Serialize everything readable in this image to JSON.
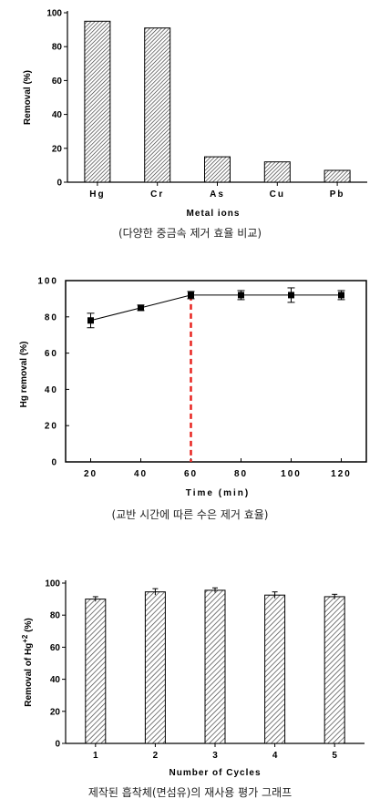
{
  "chart_data": [
    {
      "type": "bar",
      "categories": [
        "Hg",
        "Cr",
        "As",
        "Cu",
        "Pb"
      ],
      "values": [
        95,
        91,
        15,
        12,
        7
      ],
      "xlabel": "Metal ions",
      "ylabel": "Removal (%)",
      "ylim": [
        0,
        100
      ],
      "yticks": [
        0,
        20,
        40,
        60,
        80,
        100
      ],
      "pattern": "diagonal-hatch",
      "caption": "(다양한 중금속 제거 효율 비교)"
    },
    {
      "type": "line",
      "x": [
        20,
        40,
        60,
        80,
        100,
        120
      ],
      "y": [
        78,
        85,
        92,
        92,
        92,
        92
      ],
      "yerr": [
        4,
        1.5,
        2,
        2.5,
        4,
        2.5
      ],
      "xlabel": "Time (min)",
      "ylabel": "Hg removal (%)",
      "xlim": [
        10,
        130
      ],
      "ylim": [
        0,
        100
      ],
      "xticks": [
        20,
        40,
        60,
        80,
        100,
        120
      ],
      "yticks": [
        0,
        20,
        40,
        60,
        80,
        100
      ],
      "vline": {
        "x": 60,
        "color": "#e8231f",
        "style": "dashed"
      },
      "caption": "(교반 시간에 따른 수은 제거 효율)"
    },
    {
      "type": "bar",
      "categories": [
        "1",
        "2",
        "3",
        "4",
        "5"
      ],
      "values": [
        90,
        94.5,
        95.5,
        92.5,
        91.5
      ],
      "yerr": [
        1.5,
        2,
        1.5,
        2,
        1.5
      ],
      "xlabel": "Number of Cycles",
      "ylabel": "Removal of Hg",
      "ylabel_sup": "+2",
      "ylabel_suffix": " (%)",
      "ylim": [
        0,
        100
      ],
      "yticks": [
        0,
        20,
        40,
        60,
        80,
        100
      ],
      "pattern": "diagonal-hatch",
      "caption": "제작된 흡착체(면섬유)의 재사용 평가 그래프"
    }
  ]
}
